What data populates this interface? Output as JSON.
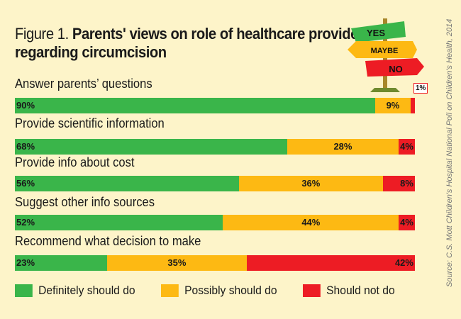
{
  "chart_data": {
    "type": "bar",
    "stacked": true,
    "orientation": "horizontal",
    "title_prefix": "Figure 1.",
    "title": "Parents' views on role of healthcare providers regarding circumcision",
    "categories": [
      "Answer parents’ questions",
      "Provide scientific information",
      "Provide info about cost",
      "Suggest other info sources",
      "Recommend what decision to make"
    ],
    "series": [
      {
        "name": "Definitely should do",
        "color": "#3ab54a",
        "values": [
          90,
          68,
          56,
          52,
          23
        ]
      },
      {
        "name": "Possibly should do",
        "color": "#fdb913",
        "values": [
          9,
          28,
          36,
          44,
          35
        ]
      },
      {
        "name": "Should not do",
        "color": "#ed1c24",
        "values": [
          1,
          4,
          8,
          4,
          42
        ]
      }
    ],
    "xlim": [
      0,
      100
    ],
    "unit": "%",
    "legend": "bottom",
    "source": "Source: C.S. Mott Children's Hospital National Poll on Children's Health, 2014",
    "signpost": [
      "YES",
      "MAYBE",
      "NO"
    ]
  }
}
